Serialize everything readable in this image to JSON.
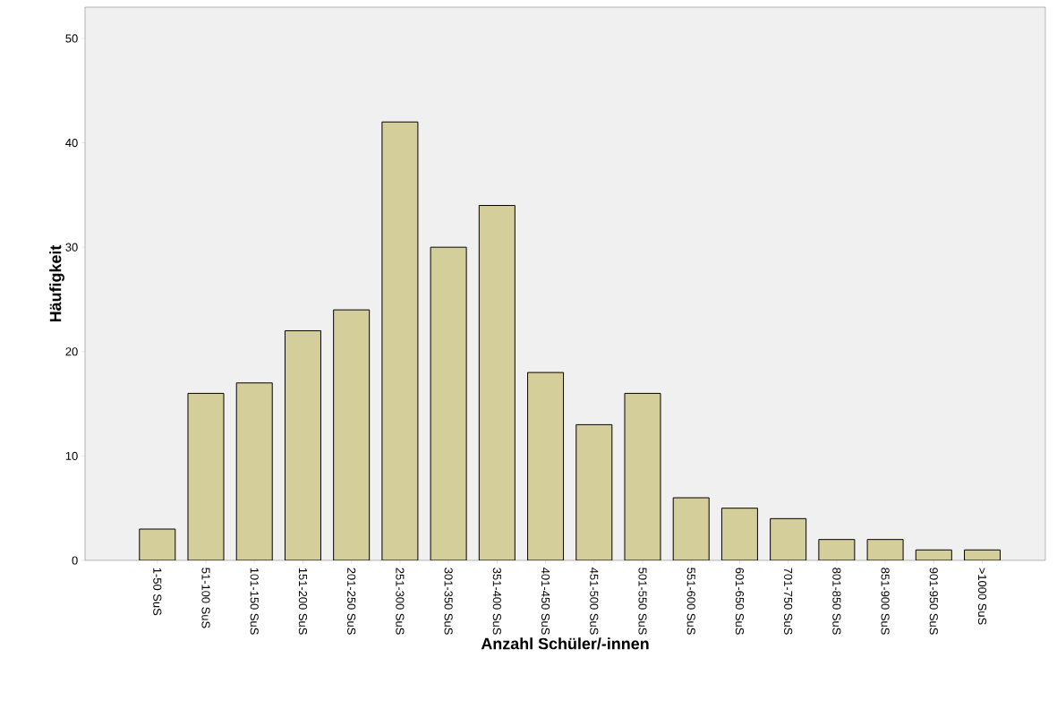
{
  "chart_data": {
    "type": "bar",
    "xlabel": "Anzahl Schüler/-innen",
    "ylabel": "Häufigkeit",
    "categories": [
      "1-50 SuS",
      "51-100 SuS",
      "101-150 SuS",
      "151-200 SuS",
      "201-250 SuS",
      "251-300 SuS",
      "301-350 SuS",
      "351-400 SuS",
      "401-450 SuS",
      "451-500 SuS",
      "501-550 SuS",
      "551-600 SuS",
      "601-650 SuS",
      "701-750 SuS",
      "801-850 SuS",
      "851-900 SuS",
      "901-950 SuS",
      ">1000 SuS"
    ],
    "values": [
      3,
      16,
      17,
      22,
      24,
      42,
      30,
      34,
      18,
      13,
      16,
      6,
      5,
      4,
      2,
      2,
      1,
      1
    ],
    "color": "#d3ce9a",
    "ylim": [
      0,
      53
    ],
    "yticks": [
      0,
      10,
      20,
      30,
      40,
      50
    ]
  }
}
